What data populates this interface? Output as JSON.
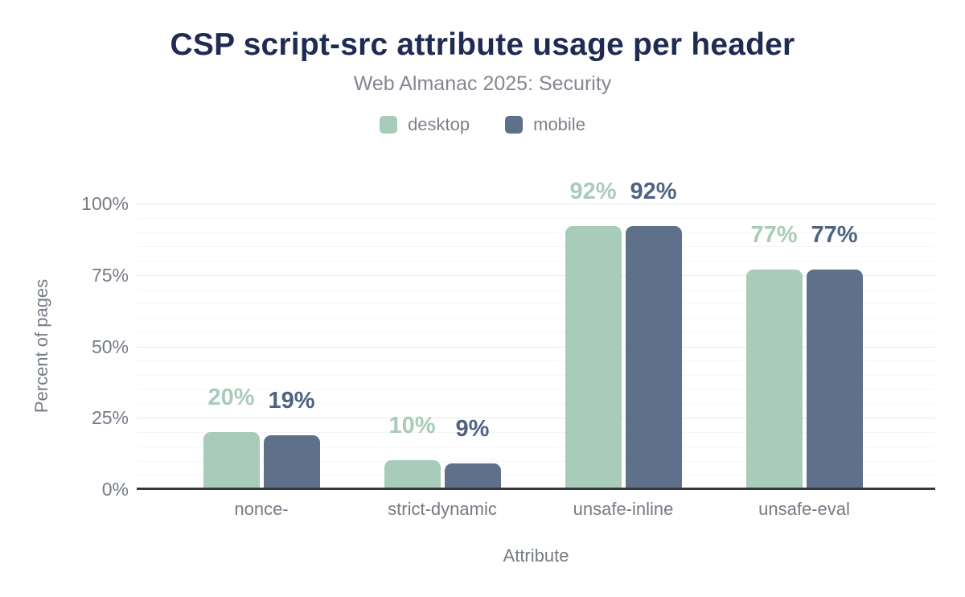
{
  "header": {
    "title": "CSP script-src attribute usage per header",
    "subtitle": "Web Almanac 2025: Security"
  },
  "colors": {
    "background": "#ffffff",
    "title": "#1f2b52",
    "subtitle": "#82878f",
    "axis_text": "#757b84",
    "legend_text": "#7b818a",
    "axis_line": "#35383c",
    "grid_major": "#e9e9e9",
    "grid_minor": "#f6f6f6"
  },
  "chart_data": {
    "type": "bar",
    "title": "CSP script-src attribute usage per header",
    "subtitle": "Web Almanac 2025: Security",
    "categories": [
      "nonce-",
      "strict-dynamic",
      "unsafe-inline",
      "unsafe-eval"
    ],
    "series": [
      {
        "name": "desktop",
        "values": [
          20,
          10,
          92,
          77
        ],
        "color": "#a9cbba",
        "label_color": "#a9cbba"
      },
      {
        "name": "mobile",
        "values": [
          19,
          9,
          92,
          77
        ],
        "color": "#5f708b",
        "label_color": "#4e6282"
      }
    ],
    "value_suffix": "%",
    "xlabel": "Attribute",
    "ylabel": "Percent of pages",
    "ylim": [
      0,
      100
    ],
    "yticks": [
      0,
      25,
      50,
      75,
      100
    ],
    "ytick_suffix": "%",
    "grid": "horizontal; major gridline every 25%, minor gridline every 5%",
    "legend_position": "top-center",
    "data_labels": "above each bar, bold, colored per series"
  }
}
